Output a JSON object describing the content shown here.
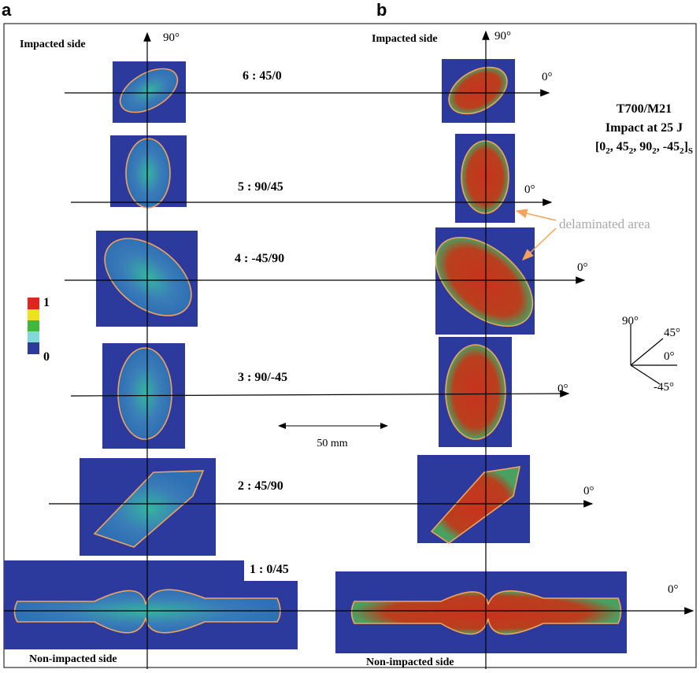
{
  "panel_labels": [
    "a",
    "b"
  ],
  "impacted_side": [
    "Impacted side",
    "Impacted side"
  ],
  "non_impacted_side": [
    "Non-impacted side",
    "Non-impacted side"
  ],
  "axis_90": [
    "90°",
    "90°"
  ],
  "axis_0": [
    "0°",
    "0°",
    "0°",
    "0°",
    "0°",
    "0°"
  ],
  "interfaces": [
    "6 : 45/0",
    "5 : 90/45",
    "4 : -45/90",
    "3 : 90/-45",
    "2 : 45/90",
    "1 : 0/45"
  ],
  "specimen": {
    "material": "T700/M21",
    "impact": "Impact at 25 J",
    "layup": [
      "[0",
      "2",
      ", 45",
      "2",
      ", 90",
      "2",
      ", -45",
      "2",
      "]",
      "S"
    ]
  },
  "annotation": "delaminated area",
  "scale_bar": "50 mm",
  "color_scale": {
    "max": "1",
    "min": "0"
  },
  "orientation": [
    "90°",
    "45°",
    "0°",
    "-45°"
  ]
}
